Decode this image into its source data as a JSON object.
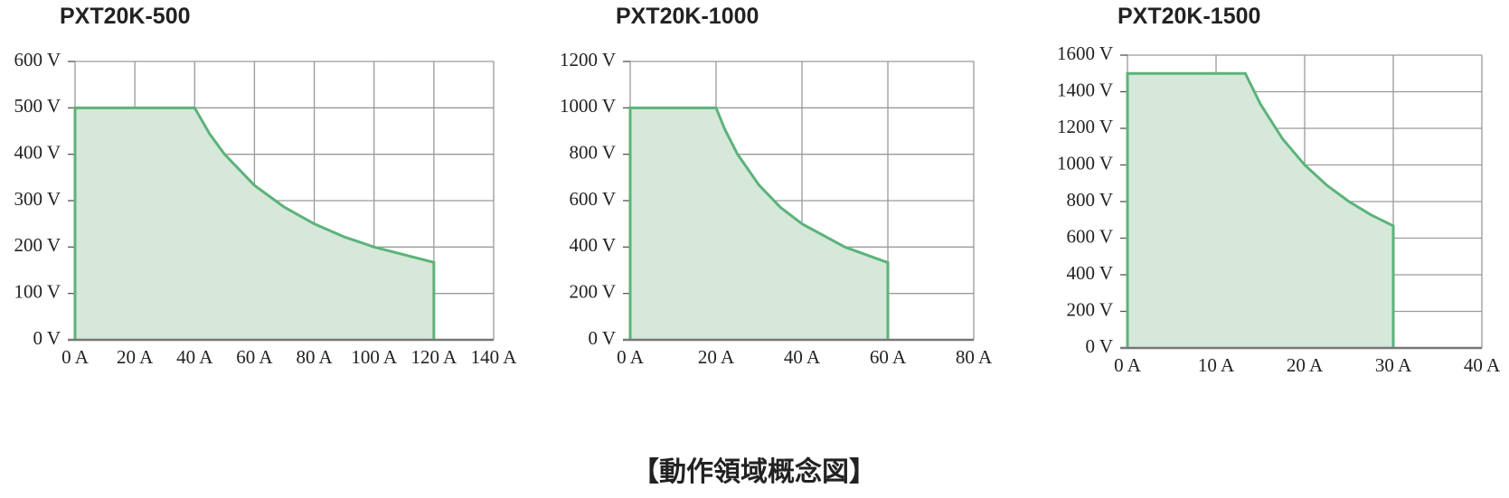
{
  "chart_data": [
    {
      "type": "area",
      "title": "PXT20K-500",
      "x": [
        0,
        0,
        40,
        45,
        50,
        60,
        70,
        80,
        90,
        100,
        120,
        120
      ],
      "values": [
        0,
        500,
        500,
        444,
        400,
        333,
        286,
        250,
        222,
        200,
        167,
        0
      ],
      "color": "#5cb37a",
      "fill_color": "#d6e8d9",
      "grid": true,
      "xlim": [
        0,
        140
      ],
      "ylim": [
        0,
        600
      ],
      "xticks": [
        {
          "value": 0,
          "label": "0 A"
        },
        {
          "value": 20,
          "label": "20 A"
        },
        {
          "value": 40,
          "label": "40 A"
        },
        {
          "value": 60,
          "label": "60 A"
        },
        {
          "value": 80,
          "label": "80 A"
        },
        {
          "value": 100,
          "label": "100 A"
        },
        {
          "value": 120,
          "label": "120 A"
        },
        {
          "value": 140,
          "label": "140 A"
        }
      ],
      "yticks": [
        {
          "value": 0,
          "label": "0 V"
        },
        {
          "value": 100,
          "label": "100 V"
        },
        {
          "value": 200,
          "label": "200 V"
        },
        {
          "value": 300,
          "label": "300 V"
        },
        {
          "value": 400,
          "label": "400 V"
        },
        {
          "value": 500,
          "label": "500 V"
        },
        {
          "value": 600,
          "label": "600 V"
        }
      ]
    },
    {
      "type": "area",
      "title": "PXT20K-1000",
      "x": [
        0,
        0,
        20,
        22,
        25,
        30,
        35,
        40,
        50,
        60,
        60
      ],
      "values": [
        0,
        1000,
        1000,
        909,
        800,
        667,
        571,
        500,
        400,
        333,
        0
      ],
      "color": "#5cb37a",
      "fill_color": "#d6e8d9",
      "grid": true,
      "xlim": [
        0,
        80
      ],
      "ylim": [
        0,
        1200
      ],
      "xticks": [
        {
          "value": 0,
          "label": "0 A"
        },
        {
          "value": 20,
          "label": "20 A"
        },
        {
          "value": 40,
          "label": "40 A"
        },
        {
          "value": 60,
          "label": "60 A"
        },
        {
          "value": 80,
          "label": "80 A"
        }
      ],
      "yticks": [
        {
          "value": 0,
          "label": "0 V"
        },
        {
          "value": 200,
          "label": "200 V"
        },
        {
          "value": 400,
          "label": "400 V"
        },
        {
          "value": 600,
          "label": "600 V"
        },
        {
          "value": 800,
          "label": "800 V"
        },
        {
          "value": 1000,
          "label": "1000 V"
        },
        {
          "value": 1200,
          "label": "1200 V"
        }
      ]
    },
    {
      "type": "area",
      "title": "PXT20K-1500",
      "x": [
        0,
        0,
        13.3,
        15,
        17.5,
        20,
        22.5,
        25,
        27.5,
        30,
        30
      ],
      "values": [
        0,
        1500,
        1500,
        1333,
        1143,
        1000,
        889,
        800,
        727,
        667,
        0
      ],
      "color": "#5cb37a",
      "fill_color": "#d6e8d9",
      "grid": true,
      "xlim": [
        0,
        40
      ],
      "ylim": [
        0,
        1600
      ],
      "xticks": [
        {
          "value": 0,
          "label": "0 A"
        },
        {
          "value": 10,
          "label": "10 A"
        },
        {
          "value": 20,
          "label": "20 A"
        },
        {
          "value": 30,
          "label": "30 A"
        },
        {
          "value": 40,
          "label": "40 A"
        }
      ],
      "yticks": [
        {
          "value": 0,
          "label": "0 V"
        },
        {
          "value": 200,
          "label": "200 V"
        },
        {
          "value": 400,
          "label": "400 V"
        },
        {
          "value": 600,
          "label": "600 V"
        },
        {
          "value": 800,
          "label": "800 V"
        },
        {
          "value": 1000,
          "label": "1000 V"
        },
        {
          "value": 1200,
          "label": "1200 V"
        },
        {
          "value": 1400,
          "label": "1400 V"
        },
        {
          "value": 1600,
          "label": "1600 V"
        }
      ]
    }
  ],
  "caption": "【動作領域概念図】"
}
